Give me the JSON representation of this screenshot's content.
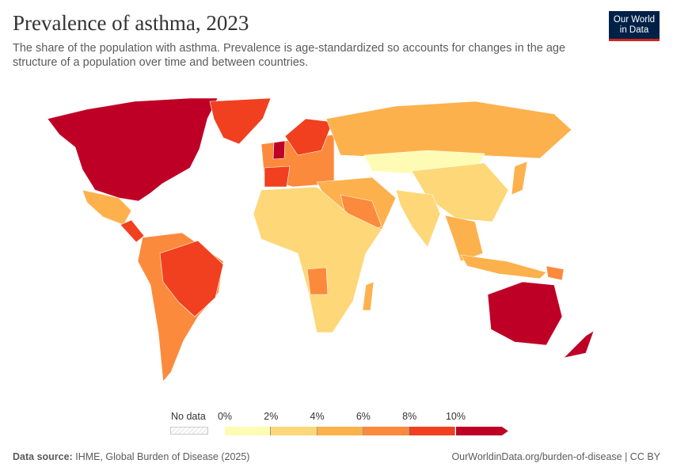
{
  "header": {
    "title": "Prevalence of asthma, 2023",
    "subtitle": "The share of the population with asthma. Prevalence is age-standardized so accounts for changes in the age structure of a population over time and between countries."
  },
  "logo": {
    "text_line1": "Our World",
    "text_line2": "in Data"
  },
  "legend": {
    "no_data_label": "No data",
    "ticks": [
      "0%",
      "2%",
      "4%",
      "6%",
      "8%",
      "10%"
    ],
    "colors": [
      "#fefbb4",
      "#fed778",
      "#fdb14c",
      "#fc8a3c",
      "#f0401f",
      "#be0026"
    ]
  },
  "map": {
    "type": "choropleth",
    "regions": [
      {
        "name": "North America (US, Canada)",
        "bin": 5
      },
      {
        "name": "Greenland",
        "bin": 4
      },
      {
        "name": "Mexico",
        "bin": 2
      },
      {
        "name": "Central America",
        "bin": 4
      },
      {
        "name": "South America",
        "bin": 3
      },
      {
        "name": "Brazil",
        "bin": 4
      },
      {
        "name": "Europe",
        "bin": 3
      },
      {
        "name": "Scandinavia",
        "bin": 4
      },
      {
        "name": "United Kingdom",
        "bin": 5
      },
      {
        "name": "Spain",
        "bin": 4
      },
      {
        "name": "Russia",
        "bin": 2
      },
      {
        "name": "Central Asia & Mongolia",
        "bin": 0
      },
      {
        "name": "China",
        "bin": 1
      },
      {
        "name": "Middle East",
        "bin": 2
      },
      {
        "name": "Saudi Arabia",
        "bin": 3
      },
      {
        "name": "India",
        "bin": 1
      },
      {
        "name": "Southeast Asia",
        "bin": 2
      },
      {
        "name": "Japan",
        "bin": 2
      },
      {
        "name": "Africa",
        "bin": 1
      },
      {
        "name": "Angola",
        "bin": 3
      },
      {
        "name": "Madagascar",
        "bin": 2
      },
      {
        "name": "Indonesia",
        "bin": 2
      },
      {
        "name": "Papua New Guinea",
        "bin": 3
      },
      {
        "name": "Australia",
        "bin": 5
      },
      {
        "name": "New Zealand",
        "bin": 5
      }
    ]
  },
  "footer": {
    "source_label": "Data source:",
    "source": "IHME, Global Burden of Disease (2025)",
    "url": "OurWorldinData.org/burden-of-disease | CC BY"
  }
}
